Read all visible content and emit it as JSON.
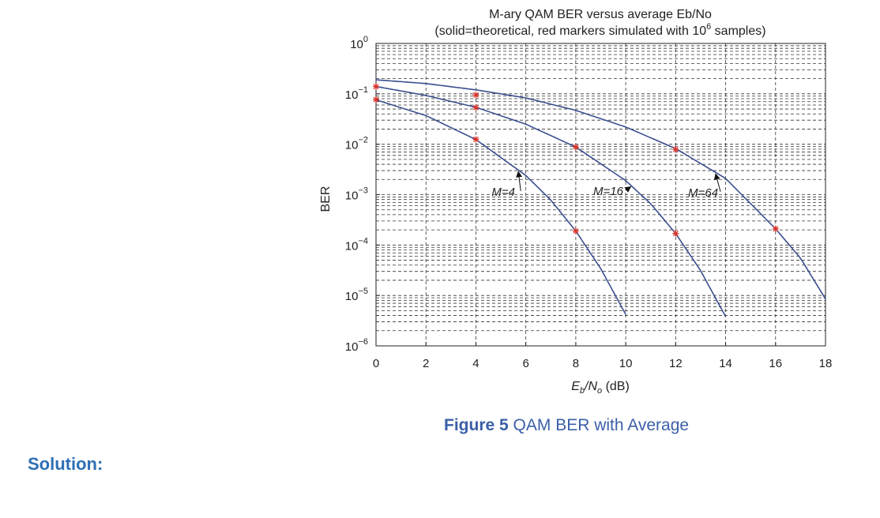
{
  "chart_data": {
    "type": "line",
    "title_line1": "M-ary QAM BER versus average Eb/No",
    "title_line2_pre": "(solid=theoretical, red markers simulated with 10",
    "title_line2_sup": "6",
    "title_line2_post": " samples)",
    "xlabel_main": "E",
    "xlabel_sub1": "b",
    "xlabel_mid": "/N",
    "xlabel_sub2": "o",
    "xlabel_unit": " (dB)",
    "ylabel": "BER",
    "xlim": [
      0,
      18
    ],
    "ylim_log10": [
      -6,
      0
    ],
    "y_scale": "log",
    "grid": true,
    "x_ticks": [
      "0",
      "2",
      "4",
      "6",
      "8",
      "10",
      "12",
      "14",
      "16",
      "18"
    ],
    "y_ticks": [
      {
        "base": "10",
        "exp": "0"
      },
      {
        "base": "10",
        "exp": "−1"
      },
      {
        "base": "10",
        "exp": "−2"
      },
      {
        "base": "10",
        "exp": "−3"
      },
      {
        "base": "10",
        "exp": "−4"
      },
      {
        "base": "10",
        "exp": "−5"
      },
      {
        "base": "10",
        "exp": "−6"
      }
    ],
    "series": [
      {
        "name": "M=4",
        "M": 4,
        "x": [
          0,
          2,
          4,
          6,
          7,
          8,
          9,
          10
        ],
        "y": [
          0.076,
          0.037,
          0.0124,
          0.0024,
          0.00078,
          0.00019,
          3.4e-05,
          4.2e-06
        ]
      },
      {
        "name": "M=16",
        "M": 16,
        "x": [
          0,
          2,
          4,
          6,
          8,
          10,
          11,
          12,
          13,
          14
        ],
        "y": [
          0.14,
          0.093,
          0.054,
          0.025,
          0.0088,
          0.0019,
          0.00066,
          0.00017,
          3.1e-05,
          3.8e-06
        ]
      },
      {
        "name": "M=64",
        "M": 64,
        "x": [
          0,
          2,
          4,
          6,
          8,
          10,
          12,
          14,
          16,
          17,
          18
        ],
        "y": [
          0.19,
          0.16,
          0.12,
          0.083,
          0.047,
          0.022,
          0.0082,
          0.0021,
          0.00021,
          5.5e-05,
          8.5e-06
        ]
      }
    ],
    "simulated_markers": [
      {
        "series": "M=4",
        "x": [
          0,
          4,
          8
        ],
        "y": [
          0.077,
          0.0125,
          0.00019
        ]
      },
      {
        "series": "M=16",
        "x": [
          0,
          4,
          8,
          12
        ],
        "y": [
          0.1395,
          0.0535,
          0.0088,
          0.00017
        ]
      },
      {
        "series": "M=64",
        "x": [
          4,
          12,
          16
        ],
        "y": [
          0.095,
          0.0079,
          0.00021
        ]
      }
    ],
    "annotations": [
      {
        "text": "M=4",
        "series": "M=4"
      },
      {
        "text": "M=16",
        "series": "M=16"
      },
      {
        "text": "M=64",
        "series": "M=64"
      }
    ],
    "line_color": "#3b4f8f",
    "marker_color": "#d9342b"
  },
  "caption": {
    "bold": "Figure 5",
    "text": " QAM BER with Average"
  },
  "solution_label": "Solution:"
}
